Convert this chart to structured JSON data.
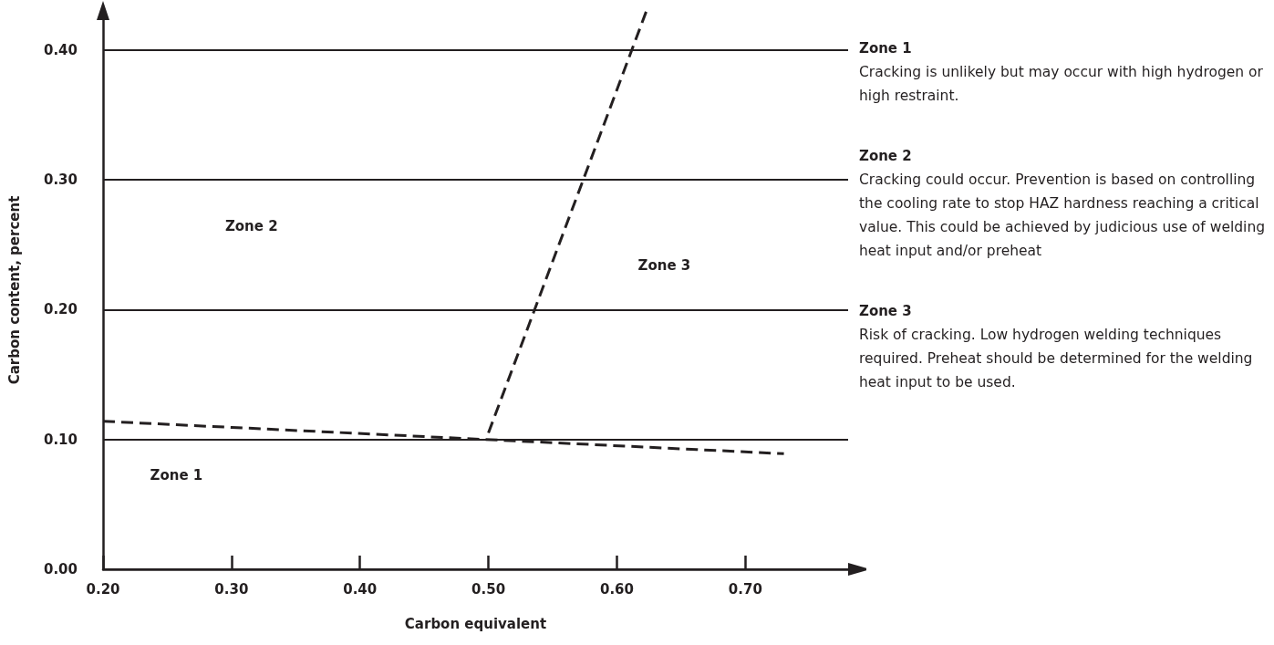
{
  "chart_data": {
    "type": "line",
    "xlabel": "Carbon equivalent",
    "ylabel": "Carbon content, percent",
    "series": [
      {
        "color": "#231f20",
        "x": [
          0.2,
          0.73
        ],
        "values": [
          0.114,
          0.089
        ]
      },
      {
        "color": "#231f20",
        "x": [
          0.5,
          0.623
        ],
        "values": [
          0.105,
          0.43
        ]
      }
    ],
    "xlim": [
      0.2,
      0.78
    ],
    "xticks": [
      {
        "value": 0.2,
        "label": "0.20"
      },
      {
        "value": 0.3,
        "label": "0.30"
      },
      {
        "value": 0.4,
        "label": "0.40"
      },
      {
        "value": 0.5,
        "label": "0.50"
      },
      {
        "value": 0.6,
        "label": "0.60"
      },
      {
        "value": 0.7,
        "label": "0.70"
      }
    ],
    "ylim": [
      0,
      0.43
    ],
    "yticks": [
      {
        "value": 0,
        "label": "0.00"
      },
      {
        "value": 0.1,
        "label": "0.10"
      },
      {
        "value": 0.2,
        "label": "0.20"
      },
      {
        "value": 0.3,
        "label": "0.30"
      },
      {
        "value": 0.4,
        "label": "0.40"
      }
    ],
    "grid": "y",
    "marker": "none",
    "line_style": "dashed",
    "annotations": [
      "Zone 1",
      "Zone 2",
      "Zone 3",
      "Zone 1",
      "Cracking is unlikely but may occur with high hydrogen or high restraint.",
      "Zone 2",
      "Cracking could occur. Prevention is based on controlling the cooling rate to stop HAZ hardness reaching a critical value. This could be achieved by judicious use of welding heat input and/or preheat",
      "Zone 3",
      "Risk of cracking. Low hydrogen welding techniques required. Preheat should be determined for the welding heat input to be used."
    ]
  }
}
